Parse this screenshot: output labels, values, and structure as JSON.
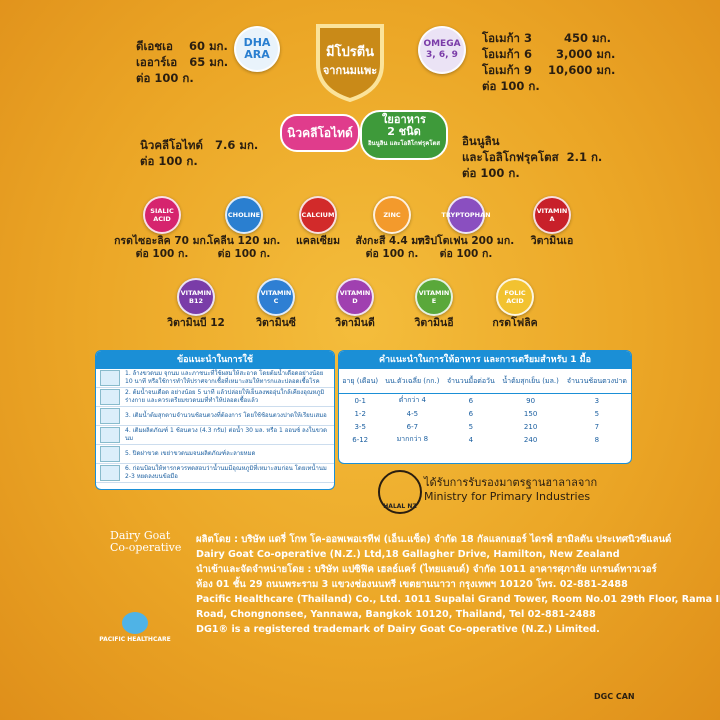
{
  "badges": {
    "shield": [
      "มีโปรตีน",
      "จากนมแพะ"
    ],
    "dha_ara": [
      "DHA",
      "ARA"
    ],
    "omega": [
      "OMEGA",
      "3, 6, 9"
    ],
    "nucleotide": "นิวคลีโอไทด์",
    "fiber": [
      "ใยอาหาร",
      "2 ชนิด",
      "อินนูลิน และโอลิโกฟรุคโตส"
    ]
  },
  "left_nutrients": [
    "ดีเอชเอ    60 มก.",
    "เออาร์เอ   65 มก.",
    "ต่อ 100 ก."
  ],
  "right_nutrients": [
    "โอเมก้า 3        450 มก.",
    "โอเมก้า 6      3,000 มก.",
    "โอเมก้า 9    10,600 มก.",
    "ต่อ 100 ก."
  ],
  "nucleotide_text": [
    "นิวคลีโอไทด์   7.6 มก.",
    "ต่อ 100 ก."
  ],
  "fiber_text": [
    "อินนูลิน",
    "และโอลิโกฟรุคโตส  2.1 ก.",
    "ต่อ 100 ก."
  ],
  "circles": [
    {
      "icon": [
        "SIALIC",
        "ACID"
      ],
      "label": [
        "กรดไซอะลิค 70 มก.",
        "ต่อ 100 ก."
      ]
    },
    {
      "icon": [
        "CHOLINE"
      ],
      "label": [
        "โคลีน 120 มก.",
        "ต่อ 100 ก."
      ]
    },
    {
      "icon": [
        "CALCIUM"
      ],
      "label": [
        "แคลเซียม"
      ]
    },
    {
      "icon": [
        "ZINC"
      ],
      "label": [
        "สังกะสี 4.4 มก.",
        "ต่อ 100 ก."
      ]
    },
    {
      "icon": [
        "TRYPTOPHAN"
      ],
      "label": [
        "ทริปโตเฟน 200 มก.",
        "ต่อ 100 ก."
      ]
    },
    {
      "icon": [
        "VITAMIN",
        "A"
      ],
      "label": [
        "วิตามินเอ"
      ]
    },
    {
      "icon": [
        "VITAMIN",
        "B12"
      ],
      "label": [
        "วิตามินบี 12"
      ]
    },
    {
      "icon": [
        "VITAMIN",
        "C"
      ],
      "label": [
        "วิตามินซี"
      ]
    },
    {
      "icon": [
        "VITAMIN",
        "D"
      ],
      "label": [
        "วิตามินดี"
      ]
    },
    {
      "icon": [
        "VITAMIN",
        "E"
      ],
      "label": [
        "วิตามินอี"
      ]
    },
    {
      "icon": [
        "FOLIC",
        "ACID"
      ],
      "label": [
        "กรดโฟลิค"
      ]
    }
  ],
  "instructions": {
    "title": "ข้อแนะนำในการใช้",
    "steps": [
      "1. ล้างขวดนม จุกนม และภาชนะที่ใช้ผสมให้สะอาด โดยต้มน้ำเดือดอย่างน้อย 10 นาที หรือใช้การทำให้ปราศจากเชื้อที่เหมาะสมให้ทารกและปลอดเชื้อโรค",
      "2. ต้มน้ำจนเดือด อย่างน้อย 5 นาที แล้วปล่อยให้เย็นลงพออุ่นใกล้เคียงอุณหภูมิร่างกาย และควรเตรียมขวดนมที่ทำให้ปลอดเชื้อแล้ว",
      "3. เติมน้ำต้มสุกตามจำนวนช้อนตวงที่ต้องการ โดยใช้ช้อนตวงปาดให้เรียบเสมอ",
      "4. เติมผลิตภัณฑ์ 1 ช้อนตวง (4.3 กรัม) ต่อน้ำ 30 มล. หรือ 1 ออนซ์ ลงในขวดนม",
      "5. ปิดฝาขวด เขย่าขวดนมจนผลิตภัณฑ์ละลายหมด",
      "6. ก่อนป้อนให้ทารกควรทดสอบว่าน้ำนมมีอุณหภูมิที่เหมาะสมก่อน โดยเทน้ำนม 2-3 หยดลงบนข้อมือ"
    ]
  },
  "feeding": {
    "title": "คำแนะนำในการให้อาหาร และการเตรียมสำหรับ 1 มื้อ",
    "headers": [
      "อายุ (เดือน)",
      "นน.ตัวเฉลี่ย (กก.)",
      "จำนวนมื้อต่อวัน",
      "น้ำต้มสุกเย็น (มล.)",
      "จำนวนช้อนตวงปาด"
    ],
    "rows": [
      [
        "0-1",
        "ต่ำกว่า 4",
        "6",
        "90",
        "3"
      ],
      [
        "1-2",
        "4-5",
        "6",
        "150",
        "5"
      ],
      [
        "3-5",
        "6-7",
        "5",
        "210",
        "7"
      ],
      [
        "6-12",
        "มากกว่า 8",
        "4",
        "240",
        "8"
      ]
    ]
  },
  "halal": {
    "logo": "HALAL NZ",
    "lines": [
      "ได้รับการรับรองมาตรฐานฮาลาลจาก",
      "Ministry for Primary Industries"
    ]
  },
  "logos": {
    "dairy_goat": [
      "Dairy Goat",
      "Co-operative"
    ],
    "pacific": "PACIFIC HEALTHCARE"
  },
  "manufacturer": [
    "ผลิตโดย : บริษัท แดรี่ โกท โค-ออพเพอเรทีฟ (เอ็น.แซ็ด) จำกัด 18 กัลแลกเฮอร์ ไดรฟ์ ฮามิลตัน ประเทศนิวซีแลนด์",
    "Dairy Goat Co-operative (N.Z.) Ltd,18 Gallagher Drive, Hamilton, New Zealand",
    "นำเข้าและจัดจำหน่ายโดย : บริษัท แปซิฟิค เฮลธ์แคร์ (ไทยแลนด์) จำกัด 1011 อาคารศุภาลัย แกรนด์ทาวเวอร์",
    "ห้อง 01 ชั้น 29 ถนนพระราม 3 แขวงช่องนนทรี เขตยานนาวา กรุงเทพฯ 10120 โทร. 02-881-2488",
    "Pacific Healthcare (Thailand) Co., Ltd. 1011 Supalai Grand Tower, Room No.01 29th Floor, Rama III",
    "Road, Chongnonsee, Yannawa, Bangkok 10120, Thailand, Tel 02-881-2488",
    "DG1® is a registered trademark of Dairy Goat Co-operative (N.Z.) Limited."
  ],
  "footer_code": "DGC CAN"
}
